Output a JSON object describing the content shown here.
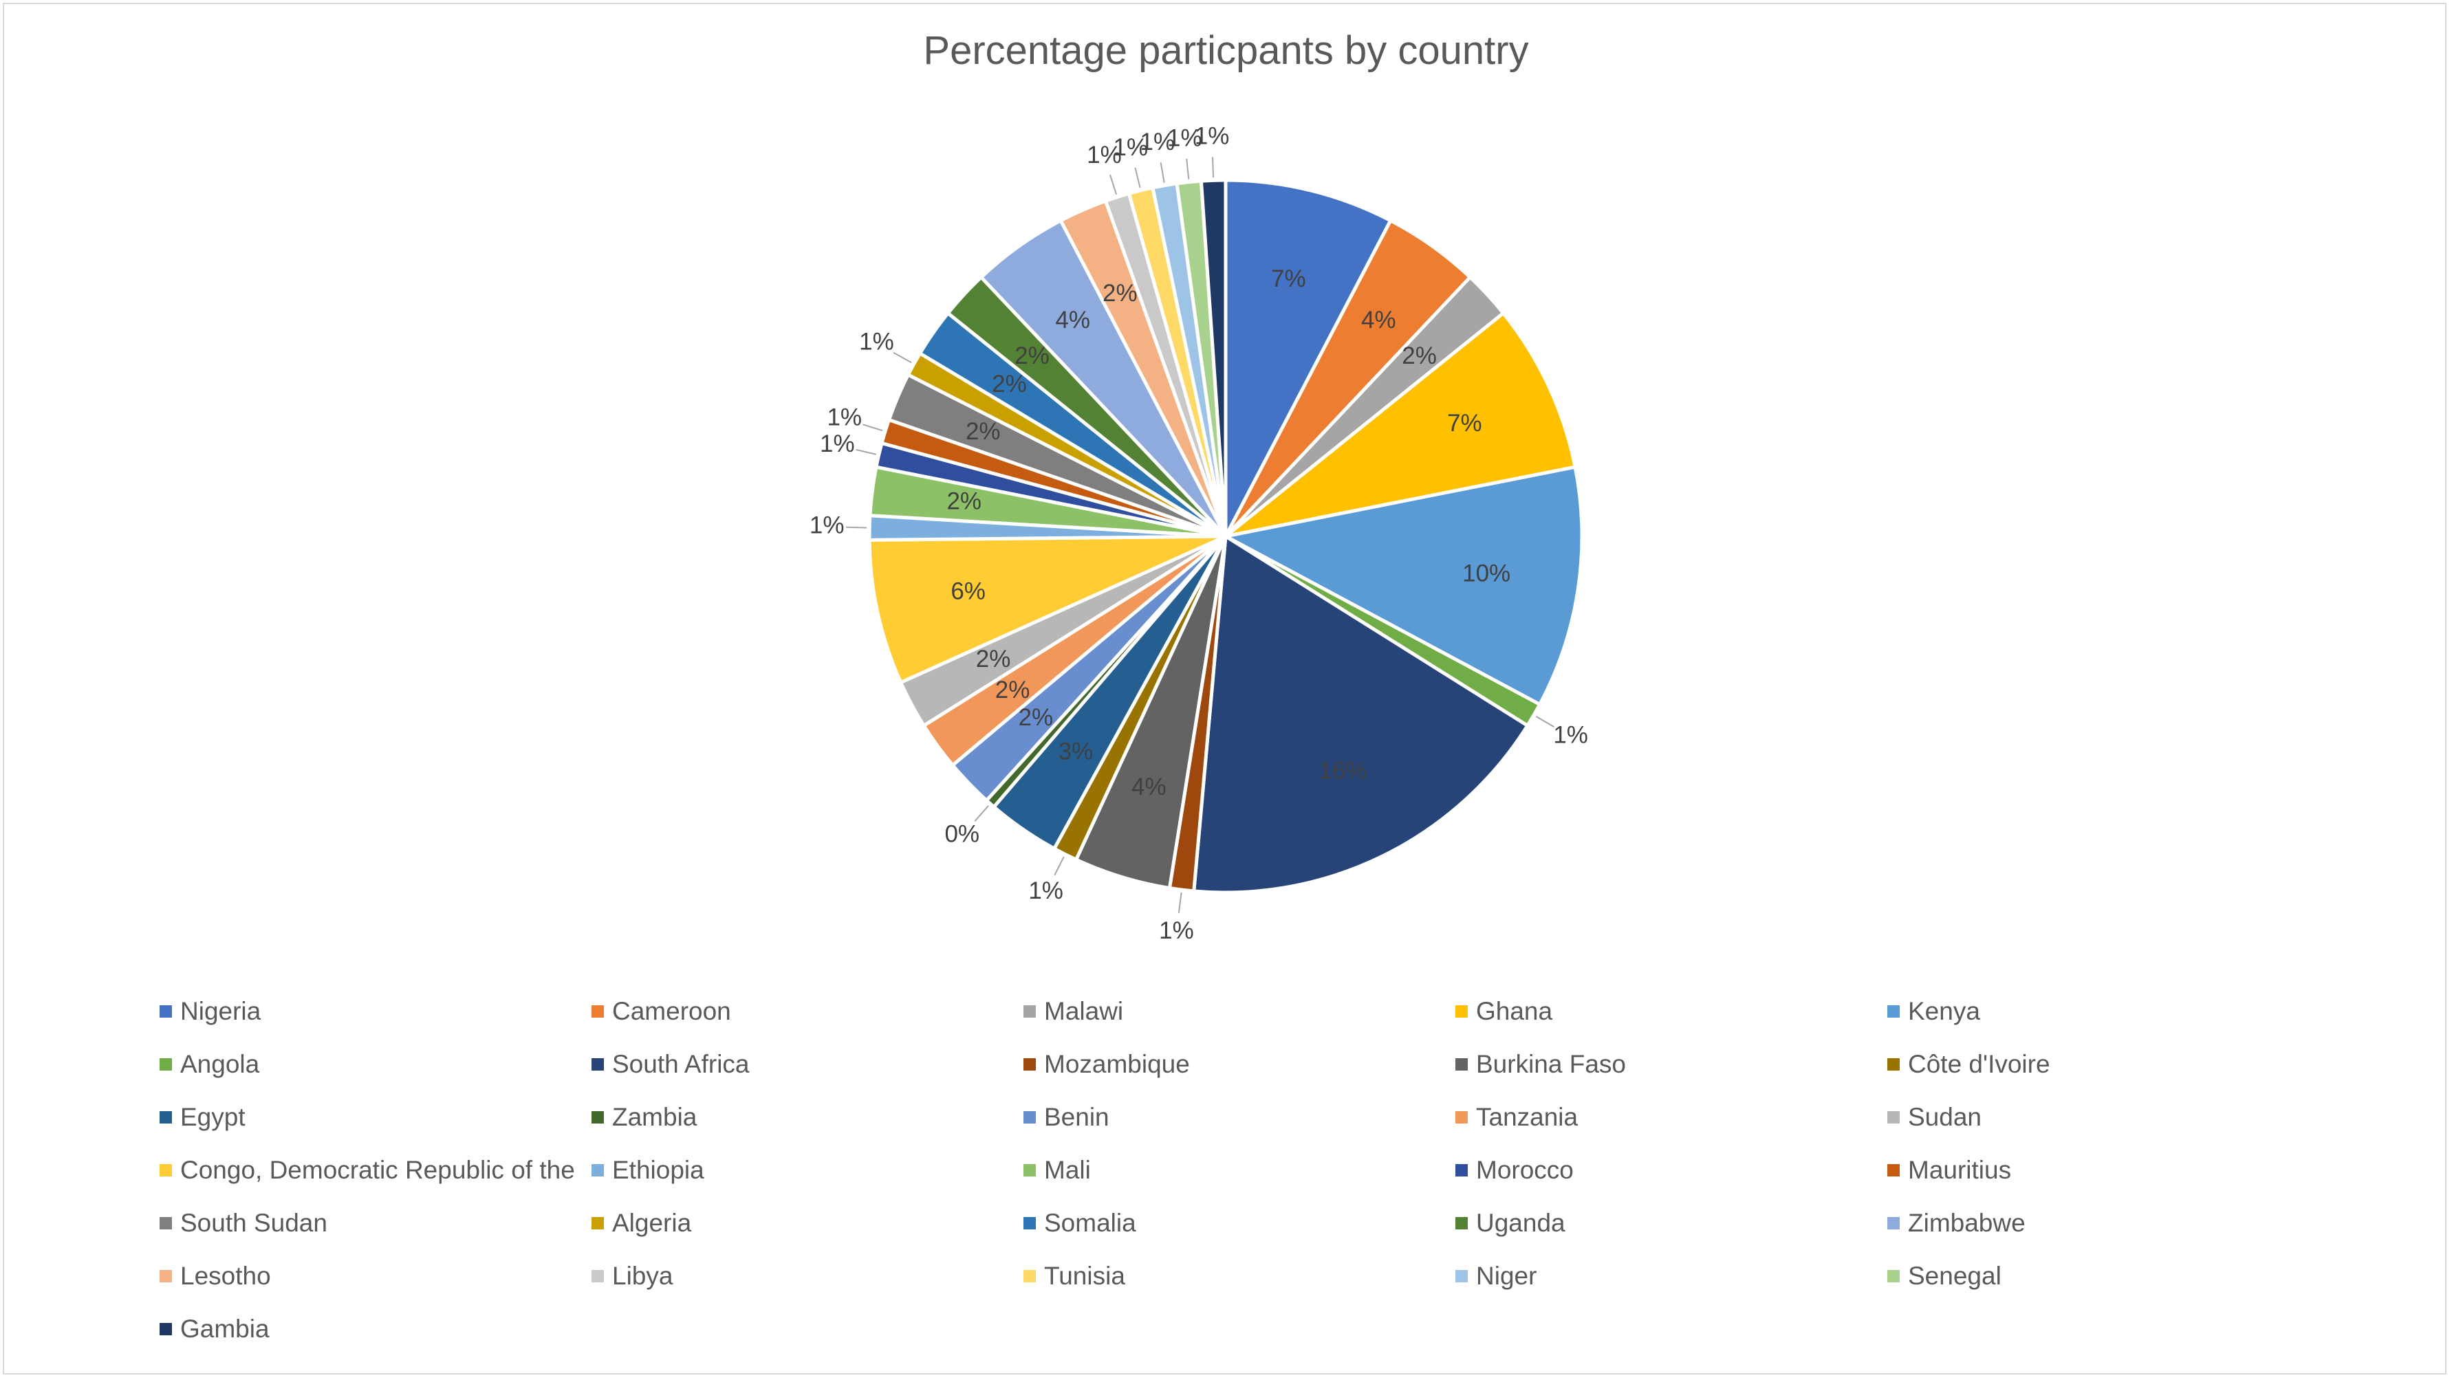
{
  "chart_data": {
    "type": "pie",
    "title": "Percentage particpants by country",
    "legend_position": "bottom",
    "slices": [
      {
        "name": "Nigeria",
        "value": 7,
        "label": "7%",
        "color": "#4472C4"
      },
      {
        "name": "Cameroon",
        "value": 4,
        "label": "4%",
        "color": "#ED7D31"
      },
      {
        "name": "Malawi",
        "value": 2,
        "label": "2%",
        "color": "#A5A5A5"
      },
      {
        "name": "Ghana",
        "value": 7,
        "label": "7%",
        "color": "#FFC000"
      },
      {
        "name": "Kenya",
        "value": 10,
        "label": "10%",
        "color": "#5B9BD5"
      },
      {
        "name": "Angola",
        "value": 1,
        "label": "1%",
        "color": "#70AD47"
      },
      {
        "name": "South Africa",
        "value": 16,
        "label": "16%",
        "color": "#264478"
      },
      {
        "name": "Mozambique",
        "value": 1,
        "label": "1%",
        "color": "#9E480E"
      },
      {
        "name": "Burkina Faso",
        "value": 4,
        "label": "4%",
        "color": "#636363"
      },
      {
        "name": "Côte d'Ivoire",
        "value": 1,
        "label": "1%",
        "color": "#997300"
      },
      {
        "name": "Egypt",
        "value": 3,
        "label": "3%",
        "color": "#255E91"
      },
      {
        "name": "Zambia",
        "value": 0.4,
        "label": "0%",
        "color": "#43682B"
      },
      {
        "name": "Benin",
        "value": 2,
        "label": "2%",
        "color": "#698ED0"
      },
      {
        "name": "Tanzania",
        "value": 2,
        "label": "2%",
        "color": "#F1975A"
      },
      {
        "name": "Sudan",
        "value": 2,
        "label": "2%",
        "color": "#B7B7B7"
      },
      {
        "name": "Congo, Democratic Republic of the",
        "value": 6,
        "label": "6%",
        "color": "#FFCD33"
      },
      {
        "name": "Ethiopia",
        "value": 1,
        "label": "1%",
        "color": "#7CAFDD"
      },
      {
        "name": "Mali",
        "value": 2,
        "label": "2%",
        "color": "#8CC168"
      },
      {
        "name": "Morocco",
        "value": 1,
        "label": "1%",
        "color": "#2F4F9E"
      },
      {
        "name": "Mauritius",
        "value": 1,
        "label": "1%",
        "color": "#C55A11"
      },
      {
        "name": "South Sudan",
        "value": 2,
        "label": "2%",
        "color": "#7F7F7F"
      },
      {
        "name": "Algeria",
        "value": 1,
        "label": "1%",
        "color": "#C9A000"
      },
      {
        "name": "Somalia",
        "value": 2,
        "label": "2%",
        "color": "#2E75B6"
      },
      {
        "name": "Uganda",
        "value": 2,
        "label": "2%",
        "color": "#548235"
      },
      {
        "name": "Zimbabwe",
        "value": 4,
        "label": "4%",
        "color": "#8FAADC"
      },
      {
        "name": "Lesotho",
        "value": 2,
        "label": "2%",
        "color": "#F4B183"
      },
      {
        "name": "Libya",
        "value": 1,
        "label": "1%",
        "color": "#C9C9C9"
      },
      {
        "name": "Tunisia",
        "value": 1,
        "label": "1%",
        "color": "#FFD966"
      },
      {
        "name": "Niger",
        "value": 1,
        "label": "1%",
        "color": "#9DC3E6"
      },
      {
        "name": "Senegal",
        "value": 1,
        "label": "1%",
        "color": "#A9D18E"
      },
      {
        "name": "Gambia",
        "value": 1,
        "label": "1%",
        "color": "#203864"
      }
    ]
  }
}
